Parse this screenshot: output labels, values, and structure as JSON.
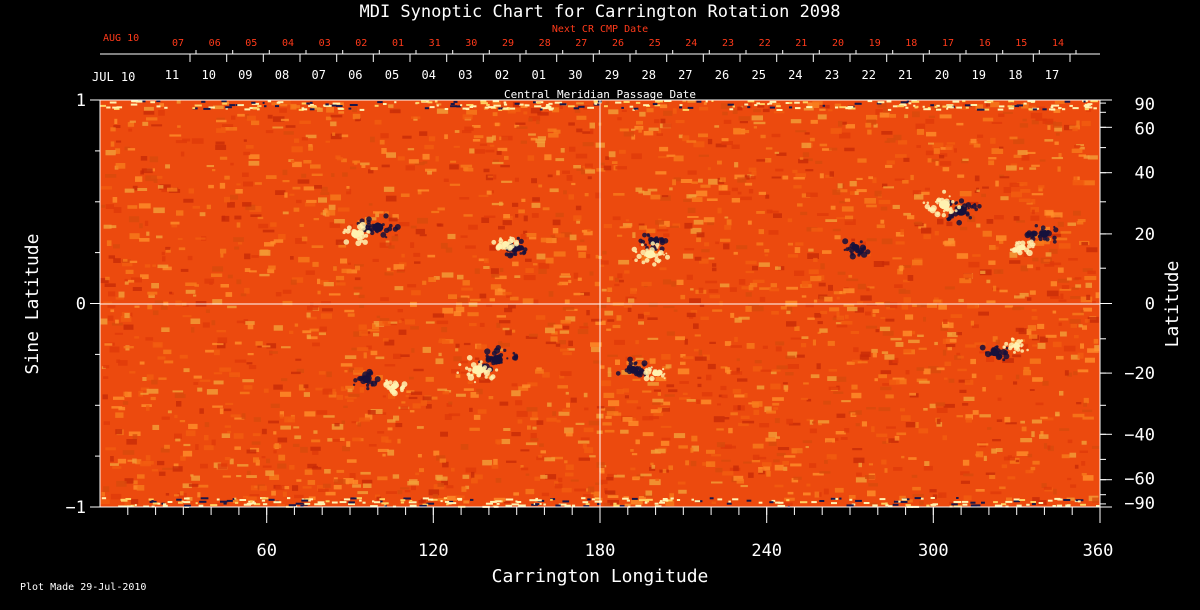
{
  "chart_data": {
    "type": "heatmap",
    "title": "MDI Synoptic Chart for Carrington Rotation 2098",
    "xlabel": "Carrington Longitude",
    "ylabel_left": "Sine Latitude",
    "ylabel_right": "Latitude",
    "xlim": [
      0,
      360
    ],
    "ylim_sine": [
      -1,
      1
    ],
    "x_ticks": [
      "60",
      "120",
      "180",
      "240",
      "300",
      "360"
    ],
    "x_tick_values": [
      60,
      120,
      180,
      240,
      300,
      360
    ],
    "y_left_ticks": [
      "1",
      "0",
      "−1"
    ],
    "y_left_tick_values": [
      1,
      0,
      -1
    ],
    "y_right_ticks": [
      "90",
      "60",
      "40",
      "20",
      "0",
      "−20",
      "−40",
      "−60",
      "−90"
    ],
    "y_right_tick_values": [
      90,
      60,
      40,
      20,
      0,
      -20,
      -40,
      -60,
      -90
    ],
    "top_red_label": "Next CR CMP Date",
    "top_red_month": "AUG 10",
    "top_red_dates": [
      "07",
      "06",
      "05",
      "04",
      "03",
      "02",
      "01",
      "31",
      "30",
      "29",
      "28",
      "27",
      "26",
      "25",
      "24",
      "23",
      "22",
      "21",
      "20",
      "19",
      "18",
      "17",
      "16",
      "15",
      "14"
    ],
    "top_white_label": "Central Meridian Passage Date",
    "top_white_month": "JUL 10",
    "top_white_dates": [
      "11",
      "10",
      "09",
      "08",
      "07",
      "06",
      "05",
      "04",
      "03",
      "02",
      "01",
      "30",
      "29",
      "28",
      "27",
      "26",
      "25",
      "24",
      "23",
      "22",
      "21",
      "20",
      "19",
      "18",
      "17"
    ],
    "footer": "Plot Made 29-Jul-2010",
    "colors": {
      "background": "#000000",
      "field": "#f04a0c",
      "positive": "#fff2b0",
      "negative": "#14103a",
      "red_text": "#ff3a1a"
    },
    "active_regions": [
      {
        "lon": 100,
        "lat": 22,
        "polarity": "negative",
        "strength": 0.9
      },
      {
        "lon": 92,
        "lat": 20,
        "polarity": "positive",
        "strength": 0.7
      },
      {
        "lon": 150,
        "lat": 16,
        "polarity": "negative",
        "strength": 0.6
      },
      {
        "lon": 146,
        "lat": 17,
        "polarity": "positive",
        "strength": 0.5
      },
      {
        "lon": 200,
        "lat": 18,
        "polarity": "negative",
        "strength": 0.6
      },
      {
        "lon": 198,
        "lat": 14,
        "polarity": "positive",
        "strength": 0.8
      },
      {
        "lon": 272,
        "lat": 16,
        "polarity": "negative",
        "strength": 0.6
      },
      {
        "lon": 310,
        "lat": 27,
        "polarity": "negative",
        "strength": 0.9
      },
      {
        "lon": 304,
        "lat": 29,
        "polarity": "positive",
        "strength": 0.9
      },
      {
        "lon": 340,
        "lat": 20,
        "polarity": "negative",
        "strength": 0.7
      },
      {
        "lon": 332,
        "lat": 16,
        "polarity": "positive",
        "strength": 0.5
      },
      {
        "lon": 143,
        "lat": -16,
        "polarity": "negative",
        "strength": 0.9
      },
      {
        "lon": 136,
        "lat": -19,
        "polarity": "positive",
        "strength": 0.9
      },
      {
        "lon": 96,
        "lat": -22,
        "polarity": "negative",
        "strength": 0.6
      },
      {
        "lon": 106,
        "lat": -24,
        "polarity": "positive",
        "strength": 0.5
      },
      {
        "lon": 192,
        "lat": -19,
        "polarity": "negative",
        "strength": 0.7
      },
      {
        "lon": 200,
        "lat": -20,
        "polarity": "positive",
        "strength": 0.5
      },
      {
        "lon": 322,
        "lat": -14,
        "polarity": "negative",
        "strength": 0.6
      },
      {
        "lon": 330,
        "lat": -12,
        "polarity": "positive",
        "strength": 0.5
      }
    ]
  }
}
